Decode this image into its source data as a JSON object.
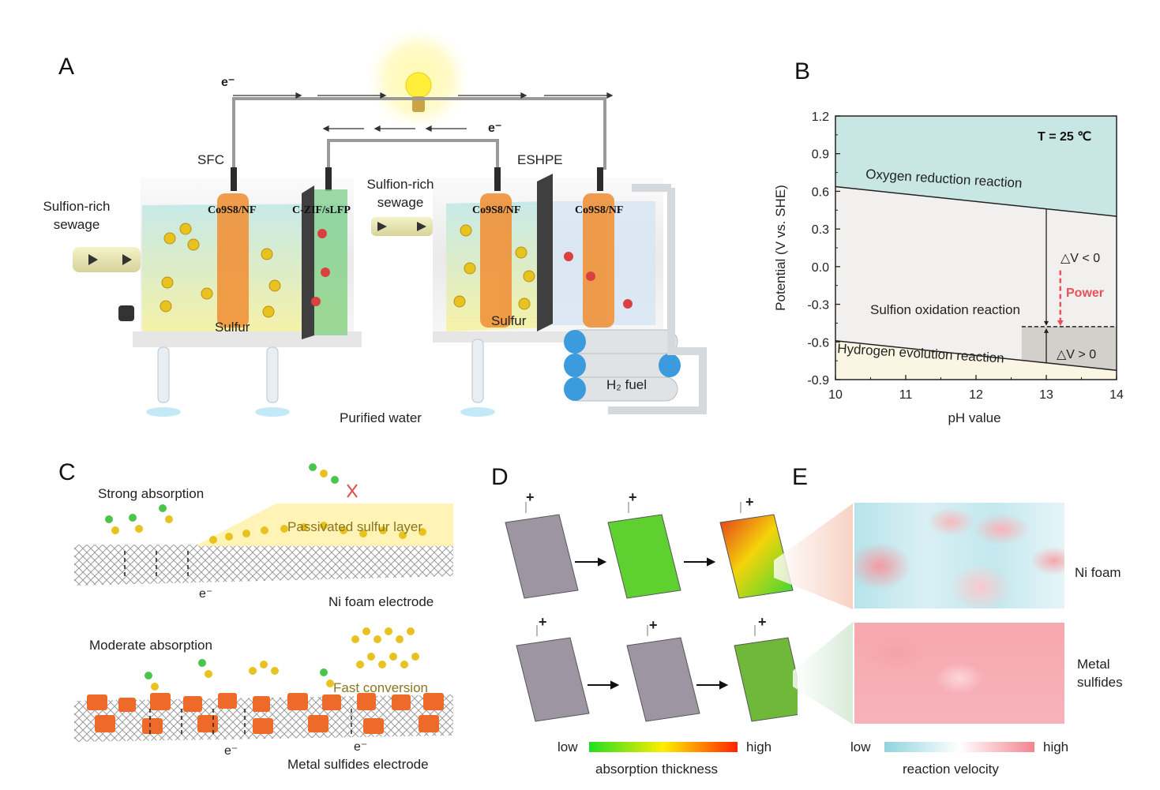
{
  "panels": {
    "a": "A",
    "b": "B",
    "c": "C",
    "d": "D",
    "e": "E"
  },
  "panel_a": {
    "electron_top": "e⁻",
    "electron_mid": "e⁻",
    "sfc": "SFC",
    "eshpe": "ESHPE",
    "inlet_label": "Sulfion-rich sewage",
    "transfer_label": "Sulfion-rich sewage",
    "electrode_1": "Co9S8/NF",
    "electrode_2": "C-ZIF/sLFP",
    "electrode_3": "Co9S8/NF",
    "electrode_4": "Co9S8/NF",
    "sulfur_1": "Sulfur",
    "sulfur_2": "Sulfur",
    "outlet": "Purified water",
    "h2": "H₂ fuel"
  },
  "panel_c": {
    "strong": "Strong absorption",
    "passivated": "Passivated sulfur layer",
    "electron_1": "e⁻",
    "ni_electrode": "Ni foam electrode",
    "moderate": "Moderate absorption",
    "fast": "Fast conversion",
    "electron_2": "e⁻",
    "electron_3": "e⁻",
    "ms_electrode": "Metal sulfides electrode"
  },
  "panel_d": {
    "plus": "+",
    "low": "low",
    "high": "high",
    "bar_label": "absorption thickness",
    "colors": [
      "#22dd22",
      "#ffee00",
      "#ff2200"
    ]
  },
  "panel_e": {
    "ni_foam": "Ni foam",
    "metal_sulfides_1": "Metal",
    "metal_sulfides_2": "sulfides",
    "low": "low",
    "high": "high",
    "bar_label": "reaction velocity",
    "colors": [
      "#8fd3df",
      "#ffffff",
      "#f2848f"
    ]
  },
  "chart_data": {
    "type": "area",
    "title": "",
    "annotation_temp": "T = 25 ℃",
    "xlabel": "pH value",
    "ylabel": "Potential (V vs. SHE)",
    "xlim": [
      10,
      14
    ],
    "ylim": [
      -0.9,
      1.2
    ],
    "x_ticks": [
      "10",
      "11",
      "12",
      "13",
      "14"
    ],
    "y_ticks": [
      "1.2",
      "0.9",
      "0.6",
      "0.3",
      "0.0",
      "-0.3",
      "-0.6",
      "-0.9"
    ],
    "lines": [
      {
        "name": "Oxygen reduction reaction",
        "x": [
          10,
          14
        ],
        "y": [
          0.637,
          0.401
        ],
        "fill": "#c8e6e3"
      },
      {
        "name": "Hydrogen evolution reaction",
        "x": [
          10,
          14
        ],
        "y": [
          -0.59,
          -0.826
        ],
        "fill": "#fbf6e4"
      }
    ],
    "region_label": "Sulfion oxidation reaction",
    "sulfion_potential": -0.478,
    "power_x": 13.0,
    "power_label": "Power",
    "dv_neg": "△V < 0",
    "dv_pos": "△V > 0",
    "colors": {
      "orr": "#c8e6e3",
      "middle": "#f1f0ef",
      "her": "#fbf6e4",
      "box": "#d3cfcb",
      "power": "#e8505b"
    }
  }
}
